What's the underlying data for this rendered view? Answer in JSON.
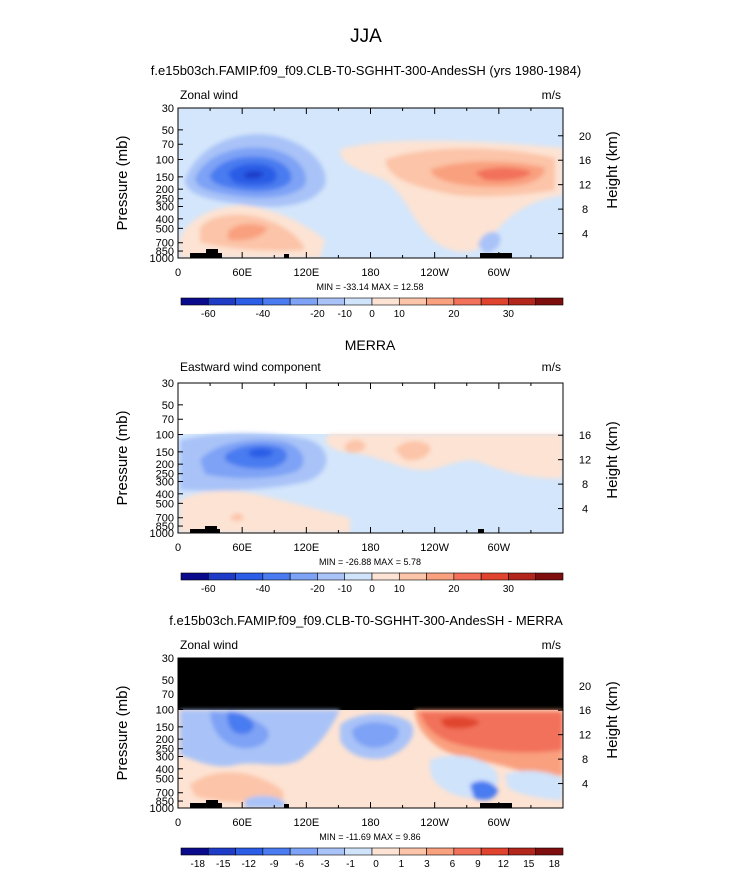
{
  "page": {
    "season": "JJA"
  },
  "legend_colors": [
    "#0a0a8c",
    "#1e3cc8",
    "#2c5de6",
    "#4a7bf0",
    "#7ea2f5",
    "#a9c3f8",
    "#cfe3fb",
    "#fde3d3",
    "#fcc4a8",
    "#f9a07f",
    "#f2715a",
    "#e0442f",
    "#b3261c",
    "#7e0d0d"
  ],
  "chart_data": [
    {
      "type": "heatmap",
      "title": "f.e15b03ch.FAMIP.f09_f09.CLB-T0-SGHHT-300-AndesSH (yrs 1980-1984)",
      "left_label": "Zonal wind",
      "right_label": "m/s",
      "ylabel": "Pressure (mb)",
      "ylabel_right": "Height (km)",
      "yticks": [
        "30",
        "50",
        "70",
        "100",
        "150",
        "200",
        "250",
        "300",
        "400",
        "500",
        "700",
        "850",
        "1000"
      ],
      "yticks_right": [
        "20",
        "16",
        "12",
        "8",
        "4"
      ],
      "xticks": [
        "0",
        "60E",
        "120E",
        "180",
        "120W",
        "60W"
      ],
      "minmax": "MIN = -33.14   MAX =  12.58",
      "colorbar_labels": [
        "-60",
        "-40",
        "-20",
        "-10",
        "0",
        "10",
        "20",
        "30"
      ],
      "features": [
        {
          "name": "jet-core-negative",
          "lon": 70,
          "p": 150,
          "value": -33.14
        },
        {
          "name": "jet-core-positive",
          "lon": 300,
          "p": 150,
          "value": 12.58
        },
        {
          "name": "low-level-positive",
          "lon": 70,
          "p": 700,
          "value": 8
        }
      ]
    },
    {
      "type": "heatmap",
      "title": "MERRA",
      "left_label": "Eastward wind component",
      "right_label": "m/s",
      "ylabel": "Pressure (mb)",
      "ylabel_right": "Height (km)",
      "yticks": [
        "30",
        "50",
        "70",
        "100",
        "150",
        "200",
        "250",
        "300",
        "400",
        "500",
        "700",
        "850",
        "1000"
      ],
      "yticks_right": [
        "16",
        "12",
        "8",
        "4"
      ],
      "xticks": [
        "0",
        "60E",
        "120E",
        "180",
        "120W",
        "60W"
      ],
      "minmax": "MIN = -26.88   MAX =   5.78",
      "colorbar_labels": [
        "-60",
        "-40",
        "-20",
        "-10",
        "0",
        "10",
        "20",
        "30"
      ],
      "features": [
        {
          "name": "jet-core-negative",
          "lon": 80,
          "p": 150,
          "value": -26.88
        },
        {
          "name": "weak-positive",
          "lon": 210,
          "p": 150,
          "value": 5.78
        }
      ]
    },
    {
      "type": "heatmap",
      "title": "f.e15b03ch.FAMIP.f09_f09.CLB-T0-SGHHT-300-AndesSH - MERRA",
      "left_label": "Zonal wind",
      "right_label": "m/s",
      "ylabel": "Pressure (mb)",
      "ylabel_right": "Height (km)",
      "yticks": [
        "30",
        "50",
        "70",
        "100",
        "150",
        "200",
        "250",
        "300",
        "400",
        "500",
        "700",
        "850",
        "1000"
      ],
      "yticks_right": [
        "20",
        "16",
        "12",
        "8",
        "4"
      ],
      "xticks": [
        "0",
        "60E",
        "120E",
        "180",
        "120W",
        "60W"
      ],
      "minmax": "MIN = -11.69   MAX =   9.86",
      "colorbar_labels": [
        "-18",
        "-15",
        "-12",
        "-9",
        "-6",
        "-3",
        "-1",
        "0",
        "1",
        "3",
        "6",
        "9",
        "12",
        "15",
        "18"
      ],
      "features": [
        {
          "name": "diff-negative",
          "lon": 60,
          "p": 150,
          "value": -11.69
        },
        {
          "name": "diff-positive",
          "lon": 290,
          "p": 150,
          "value": 9.86
        }
      ]
    }
  ]
}
